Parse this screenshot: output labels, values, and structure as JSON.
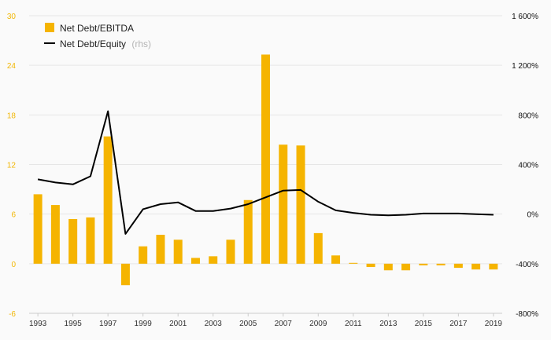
{
  "chart_data": {
    "type": "bar",
    "categories": [
      "1993",
      "1994",
      "1995",
      "1996",
      "1997",
      "1998",
      "1999",
      "2000",
      "2001",
      "2002",
      "2003",
      "2004",
      "2005",
      "2006",
      "2007",
      "2008",
      "2009",
      "2010",
      "2011",
      "2012",
      "2013",
      "2014",
      "2015",
      "2016",
      "2017",
      "2018",
      "2019"
    ],
    "x_tick_labels": [
      "1993",
      "1995",
      "1997",
      "1999",
      "2001",
      "2003",
      "2005",
      "2007",
      "2009",
      "2011",
      "2013",
      "2015",
      "2017",
      "2019"
    ],
    "series": [
      {
        "name": "Net Debt/EBITDA",
        "type": "bar",
        "axis": "left",
        "color": "#f5b400",
        "values": [
          8.4,
          7.1,
          5.4,
          5.6,
          15.4,
          -2.6,
          2.1,
          3.5,
          2.9,
          0.7,
          0.9,
          2.9,
          7.7,
          25.3,
          14.4,
          14.3,
          3.7,
          1.0,
          0.1,
          -0.4,
          -0.8,
          -0.8,
          -0.2,
          -0.2,
          -0.5,
          -0.7,
          -0.7
        ]
      },
      {
        "name": "Net Debt/Equity",
        "note": "(rhs)",
        "type": "line",
        "axis": "right",
        "color": "#000000",
        "values": [
          280,
          255,
          240,
          305,
          830,
          -160,
          40,
          80,
          95,
          25,
          25,
          45,
          80,
          135,
          190,
          195,
          100,
          30,
          10,
          -5,
          -10,
          -5,
          5,
          5,
          5,
          0,
          -5
        ]
      }
    ],
    "y_left": {
      "min": -6,
      "max": 30,
      "ticks": [
        "-6",
        "0",
        "6",
        "12",
        "18",
        "24",
        "30"
      ]
    },
    "y_right": {
      "min": -800,
      "max": 1600,
      "ticks": [
        "-800%",
        "-400%",
        "0%",
        "400%",
        "800%",
        "1 200%",
        "1 600%"
      ]
    },
    "legend_position": "top-left",
    "grid": true
  }
}
